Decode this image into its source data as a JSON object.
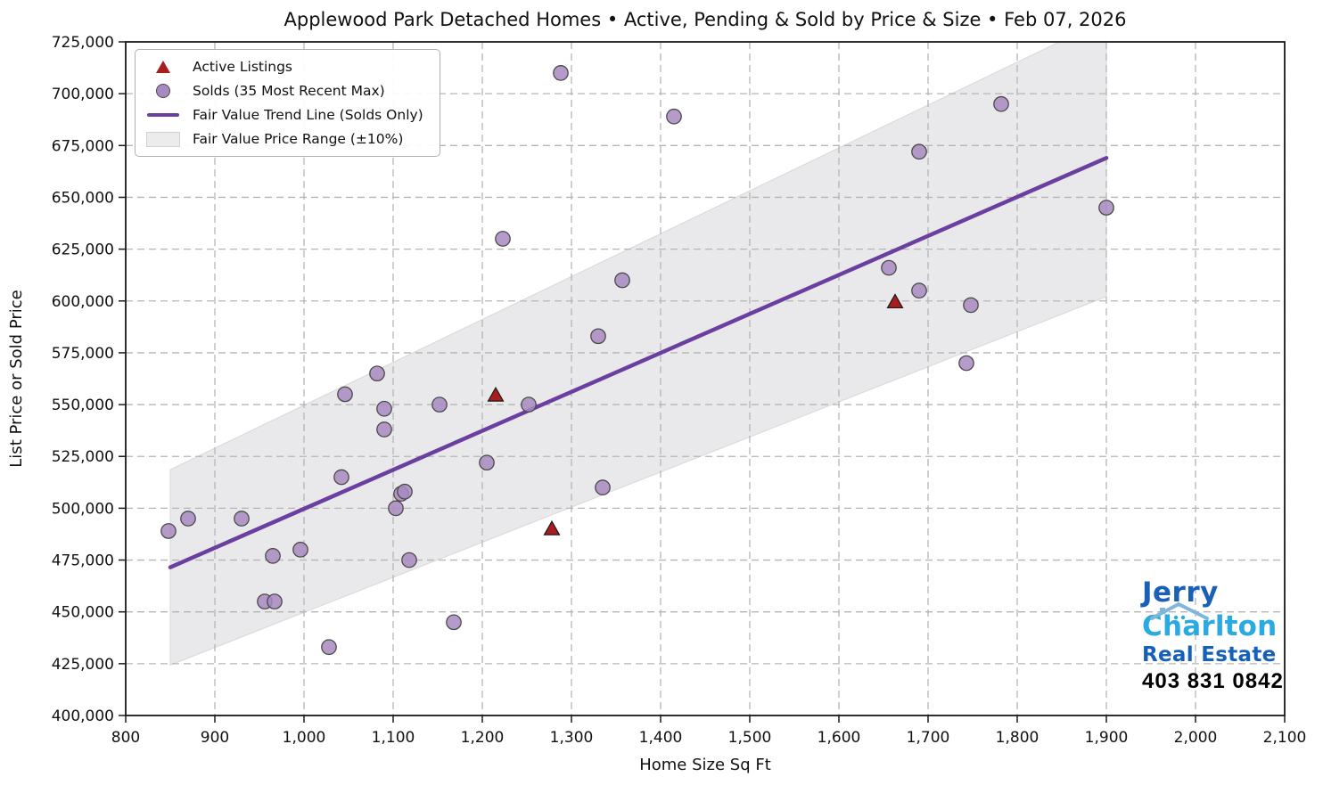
{
  "title": "Applewood Park Detached Homes • Active, Pending & Sold by Price & Size • Feb 07, 2026",
  "chart_data": {
    "type": "scatter",
    "title": "Applewood Park Detached Homes • Active, Pending & Sold by Price & Size • Feb 07, 2026",
    "xlabel": "Home Size Sq Ft",
    "ylabel": "List Price or Sold Price",
    "xlim": [
      800,
      2100
    ],
    "ylim": [
      400000,
      725000
    ],
    "x_ticks": [
      800,
      900,
      1000,
      1100,
      1200,
      1300,
      1400,
      1500,
      1600,
      1700,
      1800,
      1900,
      2000,
      2100
    ],
    "y_ticks": [
      400000,
      425000,
      450000,
      475000,
      500000,
      525000,
      550000,
      575000,
      600000,
      625000,
      650000,
      675000,
      700000,
      725000
    ],
    "grid": true,
    "legend_position": "upper-left",
    "series": [
      {
        "name": "Active Listings",
        "kind": "scatter-triangle",
        "color": "#a81e1e",
        "edge": "#1a1a1a",
        "points": [
          [
            1215,
            554500
          ],
          [
            1278,
            490000
          ],
          [
            1663,
            599500
          ]
        ]
      },
      {
        "name": "Solds (35 Most Recent Max)",
        "kind": "scatter-circle",
        "color": "#a78ac1",
        "edge": "#4a4a4a",
        "points": [
          [
            848,
            489000
          ],
          [
            870,
            495000
          ],
          [
            930,
            495000
          ],
          [
            956,
            455000
          ],
          [
            967,
            455000
          ],
          [
            965,
            477000
          ],
          [
            996,
            480000
          ],
          [
            1028,
            433000
          ],
          [
            1042,
            515000
          ],
          [
            1046,
            555000
          ],
          [
            1082,
            565000
          ],
          [
            1090,
            548000
          ],
          [
            1090,
            538000
          ],
          [
            1103,
            500000
          ],
          [
            1109,
            507000
          ],
          [
            1113,
            508000
          ],
          [
            1118,
            475000
          ],
          [
            1152,
            550000
          ],
          [
            1168,
            445000
          ],
          [
            1205,
            522000
          ],
          [
            1223,
            630000
          ],
          [
            1252,
            550000
          ],
          [
            1288,
            710000
          ],
          [
            1330,
            583000
          ],
          [
            1335,
            510000
          ],
          [
            1357,
            610000
          ],
          [
            1415,
            689000
          ],
          [
            1656,
            616000
          ],
          [
            1690,
            672000
          ],
          [
            1690,
            605000
          ],
          [
            1743,
            570000
          ],
          [
            1748,
            598000
          ],
          [
            1782,
            695000
          ],
          [
            1900,
            645000
          ]
        ]
      },
      {
        "name": "Fair Value Trend Line (Solds Only)",
        "kind": "line",
        "color": "#6b3fa0",
        "points": [
          [
            850,
            471500
          ],
          [
            1900,
            669000
          ]
        ]
      },
      {
        "name": "Fair Value Price Range (±10%)",
        "kind": "band",
        "color": "#e9e8ea",
        "pct": 10
      }
    ]
  },
  "branding": {
    "first_name": "Jerry",
    "last_name": "Charlton",
    "tagline": "Real Estate",
    "phone": "403 831 0842",
    "first_color": "#1a5fb8",
    "last_color": "#29aae1",
    "tagline_color": "#1560b8"
  }
}
